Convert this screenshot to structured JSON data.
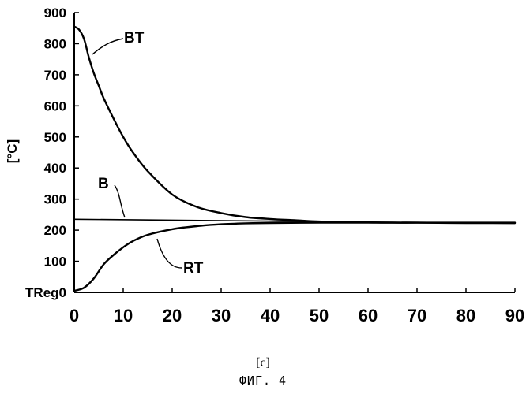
{
  "chart_data": {
    "type": "line",
    "title": "",
    "xlabel": "[c]",
    "ylabel": "[°C]",
    "xlim": [
      0,
      90
    ],
    "ylim": [
      0,
      900
    ],
    "x_ticks": [
      0,
      10,
      20,
      30,
      40,
      50,
      60,
      70,
      80,
      90
    ],
    "y_ticks": [
      {
        "value": 0,
        "label": "TReg0"
      },
      {
        "value": 100,
        "label": "100"
      },
      {
        "value": 200,
        "label": "200"
      },
      {
        "value": 300,
        "label": "300"
      },
      {
        "value": 400,
        "label": "400"
      },
      {
        "value": 500,
        "label": "500"
      },
      {
        "value": 600,
        "label": "600"
      },
      {
        "value": 700,
        "label": "700"
      },
      {
        "value": 800,
        "label": "800"
      },
      {
        "value": 900,
        "label": "900"
      }
    ],
    "grid": false,
    "series": [
      {
        "name": "BT",
        "x": [
          0,
          1,
          2,
          3,
          4,
          5,
          6,
          8,
          10,
          12,
          15,
          20,
          25,
          30,
          35,
          40,
          45,
          50,
          55,
          60,
          65,
          70,
          80,
          90
        ],
        "y": [
          855,
          845,
          815,
          755,
          705,
          665,
          625,
          560,
          500,
          450,
          390,
          315,
          275,
          255,
          242,
          236,
          232,
          228,
          226,
          225,
          224,
          224,
          223,
          223
        ]
      },
      {
        "name": "RT",
        "x": [
          0,
          2,
          4,
          6,
          8,
          10,
          12,
          15,
          20,
          25,
          30,
          35,
          40,
          50,
          60,
          70,
          90
        ],
        "y": [
          5,
          15,
          45,
          90,
          120,
          145,
          165,
          185,
          203,
          213,
          219,
          222,
          223,
          224,
          224,
          224,
          224
        ]
      },
      {
        "name": "B",
        "x": [
          0,
          90
        ],
        "y": [
          235,
          222
        ]
      }
    ]
  },
  "figure_label": "ФИГ. 4"
}
